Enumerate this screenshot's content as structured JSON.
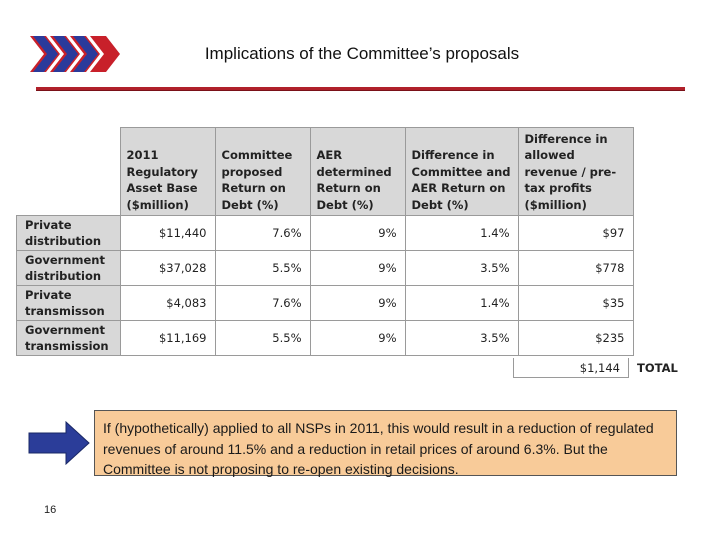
{
  "slide": {
    "title": "Implications of the Committee’s proposals",
    "page_number": "16",
    "colors": {
      "accent_red": "#b0202a",
      "logo_blue": "#2a3a9b",
      "header_gray": "#d8d8d8",
      "note_fill": "#f8cb99",
      "arrow_blue": "#2b3d99"
    },
    "icons": {
      "logo": "chevron-stripes-logo",
      "arrow": "right-arrow-icon"
    }
  },
  "table": {
    "columns": [
      "2011 Regulatory Asset Base ($million)",
      "Committee proposed Return on Debt (%)",
      "AER determined Return on Debt (%)",
      "Difference in Committee and AER Return on Debt (%)",
      "Difference in allowed revenue / pre-tax profits ($million)"
    ],
    "rows": [
      {
        "label": "Private distribution",
        "cells": [
          "$11,440",
          "7.6%",
          "9%",
          "1.4%",
          "$97"
        ]
      },
      {
        "label": "Government distribution",
        "cells": [
          "$37,028",
          "5.5%",
          "9%",
          "3.5%",
          "$778"
        ]
      },
      {
        "label": "Private transmisson",
        "cells": [
          "$4,083",
          "7.6%",
          "9%",
          "1.4%",
          "$35"
        ]
      },
      {
        "label": "Government transmission",
        "cells": [
          "$11,169",
          "5.5%",
          "9%",
          "3.5%",
          "$235"
        ]
      }
    ],
    "total_value": "$1,144",
    "total_label": "TOTAL"
  },
  "note": {
    "text": "If (hypothetically) applied to all NSPs in 2011, this would result in a reduction of regulated revenues of around 11.5% and a reduction in retail prices of around 6.3%. But the Committee is not proposing to re-open existing decisions."
  }
}
